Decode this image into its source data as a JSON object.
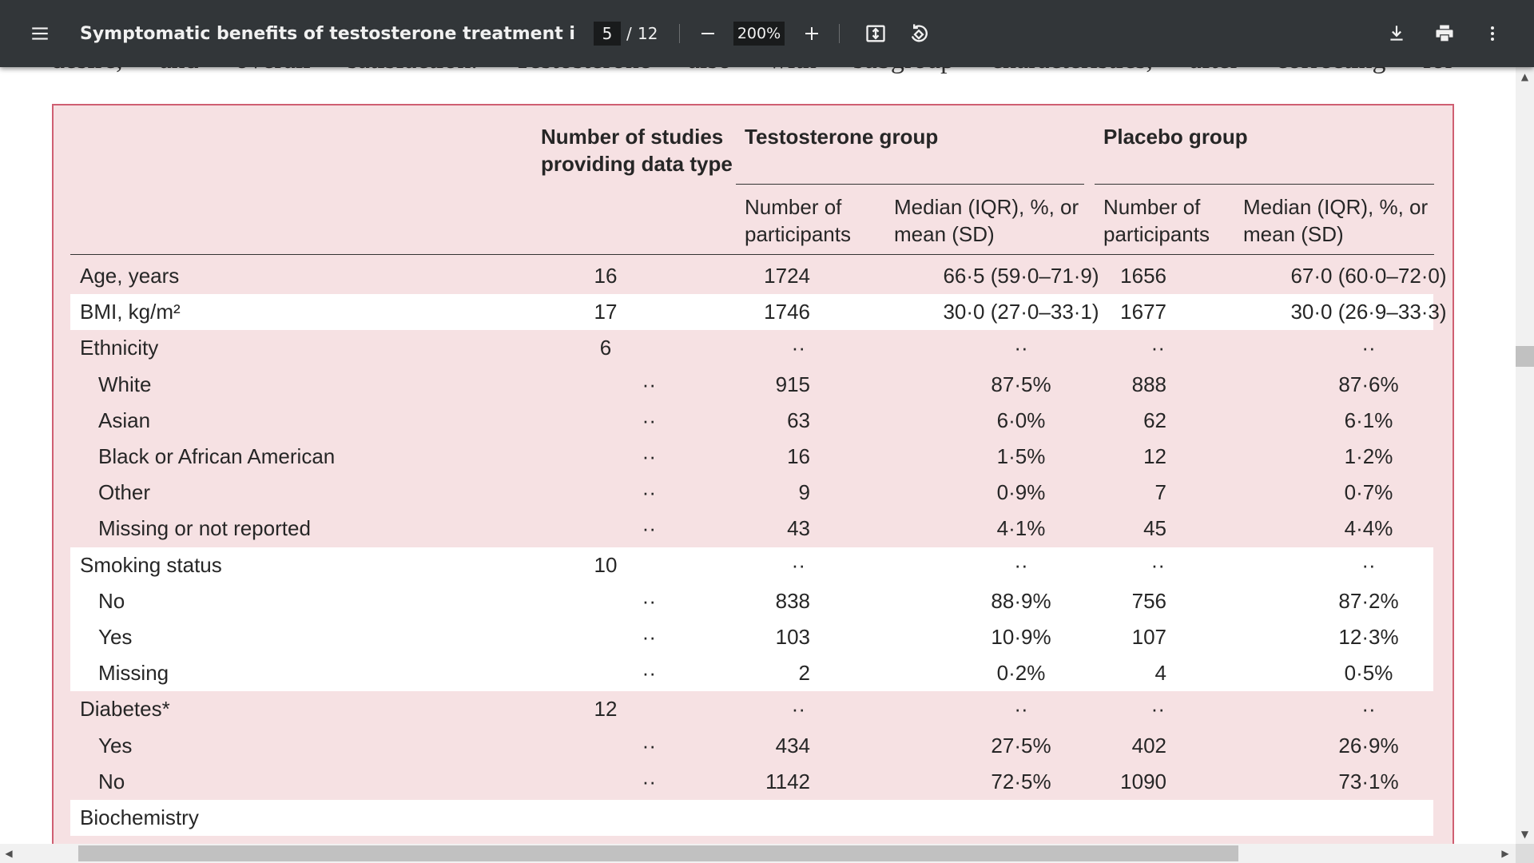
{
  "toolbar": {
    "title": "Symptomatic benefits of testosterone treatment in patient sub...",
    "current_page": "5",
    "page_separator": "/",
    "total_pages": "12",
    "zoom": "200%",
    "icons": {
      "menu": "menu-icon",
      "zoom_out": "minus-icon",
      "zoom_in": "plus-icon",
      "fit": "fit-page-icon",
      "rotate": "rotate-icon",
      "download": "download-icon",
      "print": "print-icon",
      "more": "more-vert-icon"
    }
  },
  "document": {
    "prev_text_fragments": [
      "desire,",
      "and",
      "overall",
      "satisfaction.",
      "Testosterone",
      "also",
      "with",
      "subgroup",
      "characteristics,",
      "after",
      "correcting",
      "for"
    ],
    "table": {
      "headers": {
        "studies_line1": "Number of studies",
        "studies_line2": "providing data type",
        "testosterone_group": "Testosterone group",
        "placebo_group": "Placebo group",
        "participants_line1": "Number of",
        "participants_line2": "participants",
        "median_line1": "Median (IQR), %, or",
        "median_line2": "mean (SD)"
      },
      "rows": [
        {
          "label": "Age, years",
          "studies": "16",
          "t_n": "1724",
          "t_m": "66·5 (59·0–71·9)",
          "p_n": "1656",
          "p_m": "67·0 (60·0–72·0)"
        },
        {
          "label": "BMI, kg/m²",
          "studies": "17",
          "t_n": "1746",
          "t_m": "30·0 (27·0–33·1)",
          "p_n": "1677",
          "p_m": "30·0 (26·9–33·3)"
        },
        {
          "label": "Ethnicity",
          "studies": "6",
          "t_n": "··",
          "t_m": "··",
          "p_n": "··",
          "p_m": "··"
        },
        {
          "label": "White",
          "studies": "··",
          "t_n": "915",
          "t_m": "87·5%",
          "p_n": "888",
          "p_m": "87·6%"
        },
        {
          "label": "Asian",
          "studies": "··",
          "t_n": "63",
          "t_m": "6·0%",
          "p_n": "62",
          "p_m": "6·1%"
        },
        {
          "label": "Black or African American",
          "studies": "··",
          "t_n": "16",
          "t_m": "1·5%",
          "p_n": "12",
          "p_m": "1·2%"
        },
        {
          "label": "Other",
          "studies": "··",
          "t_n": "9",
          "t_m": "0·9%",
          "p_n": "7",
          "p_m": "0·7%"
        },
        {
          "label": "Missing or not reported",
          "studies": "··",
          "t_n": "43",
          "t_m": "4·1%",
          "p_n": "45",
          "p_m": "4·4%"
        },
        {
          "label": "Smoking status",
          "studies": "10",
          "t_n": "··",
          "t_m": "··",
          "p_n": "··",
          "p_m": "··"
        },
        {
          "label": "No",
          "studies": "··",
          "t_n": "838",
          "t_m": "88·9%",
          "p_n": "756",
          "p_m": "87·2%"
        },
        {
          "label": "Yes",
          "studies": "··",
          "t_n": "103",
          "t_m": "10·9%",
          "p_n": "107",
          "p_m": "12·3%"
        },
        {
          "label": "Missing",
          "studies": "··",
          "t_n": "2",
          "t_m": "0·2%",
          "p_n": "4",
          "p_m": "0·5%"
        },
        {
          "label": "Diabetes*",
          "studies": "12",
          "t_n": "··",
          "t_m": "··",
          "p_n": "··",
          "p_m": "··"
        },
        {
          "label": "Yes",
          "studies": "··",
          "t_n": "434",
          "t_m": "27·5%",
          "p_n": "402",
          "p_m": "26·9%"
        },
        {
          "label": "No",
          "studies": "··",
          "t_n": "1142",
          "t_m": "72·5%",
          "p_n": "1090",
          "p_m": "73·1%"
        },
        {
          "label": "Biochemistry",
          "studies": "",
          "t_n": "",
          "t_m": "",
          "p_n": "",
          "p_m": ""
        }
      ]
    }
  },
  "scrollbars": {
    "up_arrow": "▲",
    "down_arrow": "▼",
    "left_arrow": "◀",
    "right_arrow": "▶"
  },
  "colors": {
    "toolbar_bg": "#323639",
    "panel_bg": "#f6e1e3",
    "panel_border": "#cf5f72"
  }
}
